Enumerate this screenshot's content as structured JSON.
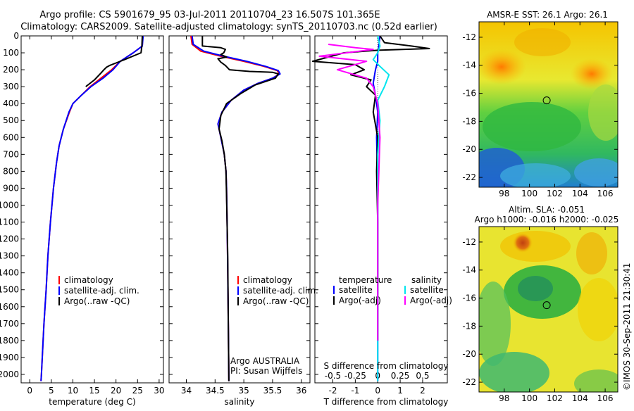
{
  "header": {
    "line1": "Argo profile: CS 5901679_95 03-Jul-2011 20110704_23 16.507S 101.365E",
    "line2": "Climatology: CARS2009. Satellite-adjusted climatology: synTS_20110703.nc (0.52d earlier)"
  },
  "colors": {
    "climatology": "#ff0000",
    "satellite": "#0000ff",
    "argo": "#000000",
    "salinity_satellite": "#00e5ee",
    "salinity_argo": "#ff00ff"
  },
  "depth_axis": {
    "ylim": [
      0,
      2050
    ],
    "ticks": [
      0,
      100,
      200,
      300,
      400,
      500,
      600,
      700,
      800,
      900,
      1000,
      1100,
      1200,
      1300,
      1400,
      1500,
      1600,
      1700,
      1800,
      1900,
      2000
    ],
    "tick_labels": [
      "0",
      "100",
      "200",
      "300",
      "400",
      "500",
      "600",
      "700",
      "800",
      "900",
      "1000",
      "1100",
      "1200",
      "1300",
      "1400",
      "1500",
      "1600",
      "1700",
      "1800",
      "1900",
      "2000"
    ]
  },
  "chart_data": [
    {
      "id": "temperature",
      "type": "line",
      "xlabel": "temperature (deg C)",
      "xlim": [
        -2,
        31
      ],
      "xticks": [
        0,
        5,
        10,
        15,
        20,
        25,
        30
      ],
      "xtick_labels": [
        "0",
        "5",
        "10",
        "15",
        "20",
        "25",
        "30"
      ],
      "legend": {
        "placement": "bottom-center",
        "entries": [
          "climatology",
          "satellite-adj. clim.",
          "Argo(..raw -QC)"
        ]
      },
      "series": [
        {
          "name": "climatology",
          "color": "#ff0000",
          "x": [
            26.2,
            26.1,
            24,
            21,
            19,
            16.5,
            14,
            12,
            10,
            9.2,
            7.8,
            6.8,
            6.2,
            5.5,
            4.8,
            4.2,
            3.8,
            3.3,
            2.9,
            2.7,
            2.6
          ],
          "y": [
            0,
            60,
            100,
            150,
            200,
            250,
            300,
            350,
            400,
            450,
            550,
            650,
            750,
            900,
            1100,
            1300,
            1500,
            1700,
            1900,
            2000,
            2040
          ]
        },
        {
          "name": "satellite-adj. clim.",
          "color": "#0000ff",
          "x": [
            26.3,
            26.1,
            24,
            21,
            19.3,
            17,
            14.2,
            12,
            10,
            9.1,
            7.8,
            6.8,
            6.2,
            5.5,
            4.8,
            4.2,
            3.8,
            3.3,
            2.9,
            2.7,
            2.6
          ],
          "y": [
            0,
            60,
            100,
            150,
            200,
            250,
            300,
            350,
            400,
            450,
            550,
            650,
            750,
            900,
            1100,
            1300,
            1500,
            1700,
            1900,
            2000,
            2040
          ]
        },
        {
          "name": "Argo(..raw -QC)",
          "color": "#000000",
          "x": [
            26.1,
            26,
            25.8,
            22,
            20,
            18.5,
            17.8,
            17.2,
            16.5,
            15,
            13
          ],
          "y": [
            0,
            60,
            100,
            140,
            160,
            175,
            185,
            200,
            220,
            260,
            300
          ]
        }
      ]
    },
    {
      "id": "salinity",
      "type": "line",
      "xlabel": "salinity",
      "xlim": [
        33.7,
        36.15
      ],
      "xticks": [
        34,
        34.5,
        35,
        35.5,
        36
      ],
      "xtick_labels": [
        "34",
        "34.5",
        "35",
        "35.5",
        "36"
      ],
      "legend": {
        "placement": "bottom-right",
        "entries": [
          "climatology",
          "satellite-adj. clim.",
          "Argo(..raw -QC)"
        ]
      },
      "annotation": [
        "Argo AUSTRALIA",
        "PI: Susan Wijffels"
      ],
      "series": [
        {
          "name": "climatology",
          "color": "#ff0000",
          "x": [
            34.08,
            34.1,
            34.25,
            34.6,
            35.0,
            35.35,
            35.58,
            35.62,
            35.5,
            35.25,
            35.0,
            34.78,
            34.62,
            34.55,
            34.6,
            34.66,
            34.69,
            34.7,
            34.71,
            34.72,
            34.73,
            34.74
          ],
          "y": [
            0,
            50,
            90,
            120,
            150,
            180,
            205,
            225,
            250,
            280,
            320,
            380,
            450,
            520,
            600,
            700,
            800,
            900,
            1100,
            1400,
            1700,
            2040
          ]
        },
        {
          "name": "satellite-adj. clim.",
          "color": "#0000ff",
          "x": [
            34.1,
            34.12,
            34.3,
            34.65,
            35.05,
            35.38,
            35.6,
            35.63,
            35.5,
            35.25,
            35.0,
            34.78,
            34.62,
            34.55,
            34.6,
            34.66,
            34.69,
            34.7,
            34.71,
            34.72,
            34.73,
            34.74
          ],
          "y": [
            0,
            50,
            90,
            120,
            150,
            180,
            205,
            225,
            250,
            280,
            320,
            380,
            450,
            520,
            600,
            700,
            800,
            900,
            1100,
            1400,
            1700,
            2040
          ]
        },
        {
          "name": "Argo(..raw -QC)",
          "color": "#000000",
          "x": [
            34.28,
            34.28,
            34.6,
            34.68,
            34.65,
            34.6,
            34.7,
            34.55,
            34.6,
            34.68,
            34.75,
            35.1,
            35.5,
            35.6,
            35.55,
            35.2,
            34.95,
            34.7,
            34.6,
            34.57,
            34.62,
            34.66,
            34.69,
            34.7,
            34.72,
            34.73,
            34.74
          ],
          "y": [
            0,
            60,
            70,
            80,
            100,
            110,
            125,
            135,
            155,
            175,
            200,
            210,
            215,
            225,
            250,
            290,
            340,
            400,
            470,
            550,
            620,
            700,
            800,
            950,
            1300,
            1700,
            2040
          ]
        }
      ]
    },
    {
      "id": "difference",
      "type": "line",
      "xlabel_top": "S difference from climatology",
      "xlabel_bottom": "T difference from climatology",
      "xlim": [
        -2.8,
        3.1
      ],
      "xticks": [
        -2,
        -1,
        0,
        1,
        2
      ],
      "xtick_labels": [
        "-2",
        "-1",
        "0",
        "1",
        "2"
      ],
      "top_xtick_labels": [
        "-0.5",
        "-0.25",
        "0",
        "0.25",
        "0.5"
      ],
      "legend": {
        "placement": "bottom",
        "headers": [
          "temperature",
          "salinity"
        ],
        "entries": [
          "satellite",
          "Argo(-adj)",
          "satellite",
          "Argo(-adj)"
        ]
      },
      "series": [
        {
          "name": "temperature satellite",
          "color": "#0000ff",
          "x": [
            0.1,
            0.05,
            0,
            0,
            -0.1,
            -0.2,
            -0.1,
            0,
            -0.05,
            0,
            0,
            0
          ],
          "y": [
            0,
            60,
            100,
            150,
            200,
            280,
            350,
            450,
            600,
            900,
            1300,
            2040
          ]
        },
        {
          "name": "temperature Argo(-adj)",
          "color": "#000000",
          "x": [
            0.1,
            0.3,
            1.5,
            2.3,
            0,
            -1.5,
            -2.9,
            -1,
            -0.6,
            -1.2,
            -0.3,
            -0.5,
            -0.1,
            -0.2,
            0,
            -0.05,
            0,
            0
          ],
          "y": [
            0,
            40,
            60,
            75,
            85,
            100,
            150,
            170,
            200,
            230,
            260,
            300,
            350,
            450,
            600,
            800,
            1100,
            1800
          ]
        },
        {
          "name": "salinity satellite",
          "color": "#00e5ee",
          "x": [
            0,
            0.1,
            0,
            -0.2,
            0.1,
            0.5,
            0.3,
            0,
            0.1,
            0,
            0,
            0
          ],
          "y": [
            0,
            60,
            100,
            140,
            180,
            230,
            300,
            380,
            500,
            700,
            1000,
            2040
          ]
        },
        {
          "name": "salinity Argo(-adj)",
          "color": "#ff00ff",
          "x": [
            -2.2,
            -1,
            -0.2,
            -2.6,
            -0.5,
            -1.8,
            -0.5,
            -0.2,
            0,
            0.1,
            0,
            0
          ],
          "y": [
            50,
            70,
            80,
            120,
            150,
            200,
            250,
            300,
            400,
            600,
            1000,
            1800
          ]
        }
      ]
    }
  ],
  "maps": {
    "top": {
      "title": "AMSR-E SST: 26.1  Argo: 26.1",
      "subtitle": ""
    },
    "bottom": {
      "title": "Altim. SLA: -0.051",
      "subtitle": "Argo h1000: -0.016  h2000: -0.025"
    },
    "xticks": [
      98,
      100,
      102,
      104,
      106
    ],
    "xtick_labels": [
      "98",
      "100",
      "102",
      "104",
      "106"
    ],
    "yticks": [
      -12,
      -14,
      -16,
      -18,
      -20,
      -22
    ],
    "ytick_labels": [
      "-12",
      "-14",
      "-16",
      "-18",
      "-20",
      "-22"
    ],
    "xlim": [
      96,
      107
    ],
    "ylim": [
      -22.7,
      -10.9
    ],
    "marker": {
      "lon": 101.365,
      "lat": -16.507
    }
  },
  "credit": "©IMOS 30-Sep-2011 21:30:41"
}
